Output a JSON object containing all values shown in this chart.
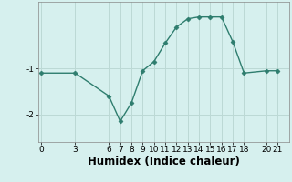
{
  "x": [
    0,
    3,
    6,
    7,
    8,
    9,
    10,
    11,
    12,
    13,
    14,
    15,
    16,
    17,
    18,
    20,
    21
  ],
  "y": [
    -1.1,
    -1.1,
    -1.6,
    -2.15,
    -1.75,
    -1.05,
    -0.85,
    -0.45,
    -0.1,
    0.08,
    0.12,
    0.12,
    0.12,
    -0.42,
    -1.1,
    -1.05,
    -1.05
  ],
  "xticks": [
    0,
    3,
    6,
    7,
    8,
    9,
    10,
    11,
    12,
    13,
    14,
    15,
    16,
    17,
    18,
    20,
    21
  ],
  "yticks": [
    -2,
    -1
  ],
  "ylim": [
    -2.6,
    0.45
  ],
  "xlim": [
    -0.3,
    22
  ],
  "xlabel": "Humidex (Indice chaleur)",
  "line_color": "#2e7d6e",
  "marker": "D",
  "marker_size": 2.5,
  "bg_color": "#d6f0ee",
  "grid_color": "#bcd9d5",
  "tick_label_fontsize": 6.5,
  "xlabel_fontsize": 8.5
}
